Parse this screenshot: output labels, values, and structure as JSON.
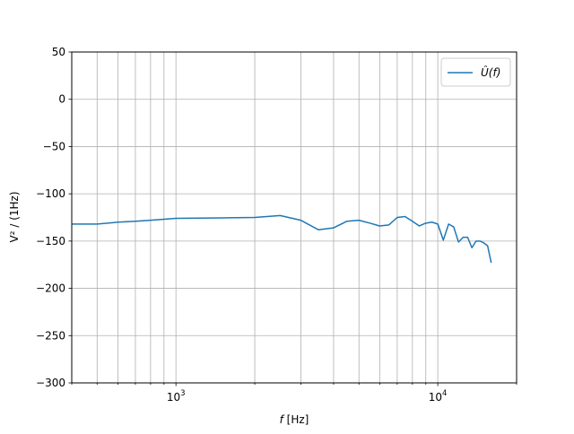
{
  "chart_data": {
    "type": "line",
    "title": "",
    "xlabel_var": "f",
    "xlabel_unit": " [Hz]",
    "ylabel": "V² / (1Hz)",
    "xscale": "log",
    "xlim": [
      400,
      20000
    ],
    "ylim": [
      -300,
      50
    ],
    "grid": true,
    "legend_position": "top-right",
    "x_major_ticks": [
      {
        "value": 1000,
        "base": "10",
        "exp": "3"
      },
      {
        "value": 10000,
        "base": "10",
        "exp": "4"
      }
    ],
    "y_ticks": [
      50,
      0,
      -50,
      -100,
      -150,
      -200,
      -250,
      -300
    ],
    "y_tick_labels": [
      "50",
      "0",
      "−50",
      "−100",
      "−150",
      "−200",
      "−250",
      "−300"
    ],
    "series": [
      {
        "name": "Û(f)",
        "color": "#1f77b4",
        "x": [
          400,
          500,
          600,
          700,
          800,
          1000,
          1500,
          2000,
          2500,
          3000,
          3500,
          4000,
          4500,
          5000,
          5500,
          6000,
          6500,
          7000,
          7500,
          8000,
          8500,
          9000,
          9500,
          10000,
          10500,
          11000,
          11500,
          12000,
          12500,
          13000,
          13500,
          14000,
          14500,
          15000,
          15500,
          16000
        ],
        "y": [
          -132,
          -132,
          -130,
          -129,
          -128,
          -126,
          -125.5,
          -125,
          -123,
          -128,
          -138,
          -136,
          -129,
          -128,
          -131,
          -134,
          -133,
          -125,
          -124,
          -129,
          -134,
          -131,
          -130,
          -132,
          -149,
          -132,
          -135,
          -151,
          -146,
          -146,
          -157,
          -150,
          -150,
          -152,
          -155,
          -173
        ]
      }
    ]
  }
}
